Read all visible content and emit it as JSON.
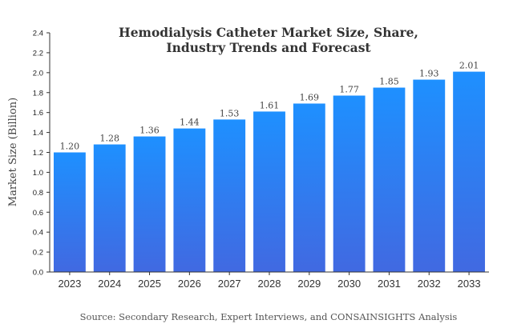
{
  "chart_data": {
    "type": "bar",
    "title_lines": [
      "Hemodialysis Catheter Market Size, Share,",
      "Industry Trends and Forecast"
    ],
    "ylabel": "Market Size (Billion)",
    "xlabel": "",
    "categories": [
      "2023",
      "2024",
      "2025",
      "2026",
      "2027",
      "2028",
      "2029",
      "2030",
      "2031",
      "2032",
      "2033"
    ],
    "values": [
      1.2,
      1.28,
      1.36,
      1.44,
      1.53,
      1.61,
      1.69,
      1.77,
      1.85,
      1.93,
      2.01
    ],
    "data_labels": [
      "1.20",
      "1.28",
      "1.36",
      "1.44",
      "1.53",
      "1.61",
      "1.69",
      "1.77",
      "1.85",
      "1.93",
      "2.01"
    ],
    "ylim": [
      0,
      2.4
    ],
    "yticks": [
      "0.0",
      "0.2",
      "0.4",
      "0.6",
      "0.8",
      "1.0",
      "1.2",
      "1.4",
      "1.6",
      "1.8",
      "2.0",
      "2.2",
      "2.4"
    ],
    "grid": false,
    "colors": {
      "bar_top": "#1e90ff",
      "bar_bottom": "#4169e1"
    },
    "source": "Source: Secondary Research, Expert Interviews, and CONSAINSIGHTS Analysis"
  }
}
